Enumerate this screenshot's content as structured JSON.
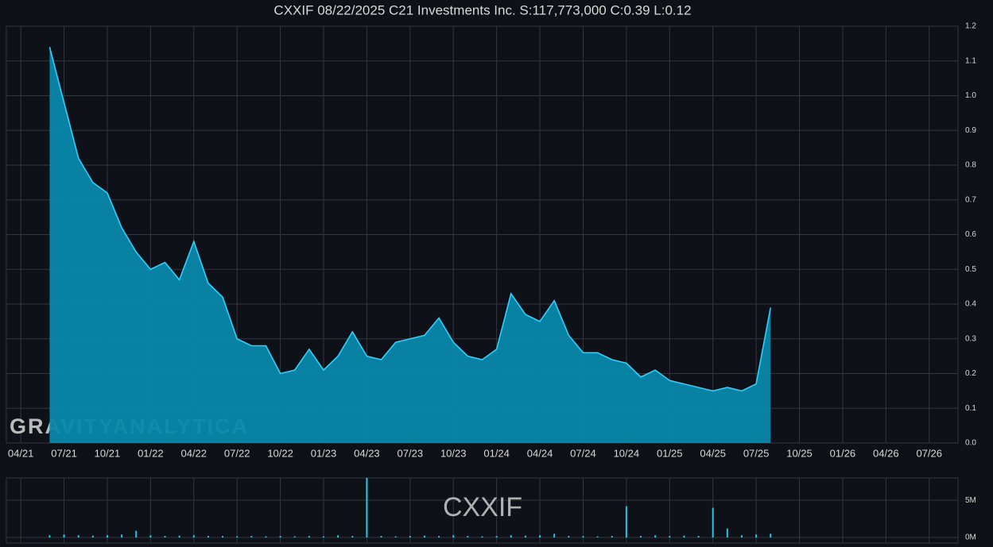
{
  "chart_data": [
    {
      "type": "area",
      "title": "CXXIF 08/22/2025 C21 Investments Inc. S:117,773,000 C:0.39 L:0.12",
      "watermark": "GRAVITYANALYTICA",
      "x": [
        "06/21",
        "07/21",
        "08/21",
        "09/21",
        "10/21",
        "11/21",
        "12/21",
        "01/22",
        "02/22",
        "03/22",
        "04/22",
        "05/22",
        "06/22",
        "07/22",
        "08/22",
        "09/22",
        "10/22",
        "11/22",
        "12/22",
        "01/23",
        "02/23",
        "03/23",
        "04/23",
        "05/23",
        "06/23",
        "07/23",
        "08/23",
        "09/23",
        "10/23",
        "11/23",
        "12/23",
        "01/24",
        "02/24",
        "03/24",
        "04/24",
        "05/24",
        "06/24",
        "07/24",
        "08/24",
        "09/24",
        "10/24",
        "11/24",
        "12/24",
        "01/25",
        "02/25",
        "03/25",
        "04/25",
        "05/25",
        "06/25",
        "07/25",
        "08/25"
      ],
      "values": [
        1.14,
        0.98,
        0.82,
        0.75,
        0.72,
        0.62,
        0.55,
        0.5,
        0.52,
        0.47,
        0.58,
        0.46,
        0.42,
        0.3,
        0.28,
        0.28,
        0.2,
        0.21,
        0.27,
        0.21,
        0.25,
        0.32,
        0.25,
        0.24,
        0.29,
        0.3,
        0.31,
        0.36,
        0.29,
        0.25,
        0.24,
        0.27,
        0.43,
        0.37,
        0.35,
        0.41,
        0.31,
        0.26,
        0.26,
        0.24,
        0.23,
        0.19,
        0.21,
        0.18,
        0.17,
        0.16,
        0.15,
        0.16,
        0.15,
        0.17,
        0.39
      ],
      "color": "#2fd0ff",
      "fill": "#0888aa",
      "xlim": [
        "03/21",
        "09/26"
      ],
      "xticks": [
        "04/21",
        "07/21",
        "10/21",
        "01/22",
        "04/22",
        "07/22",
        "10/22",
        "01/23",
        "04/23",
        "07/23",
        "10/23",
        "01/24",
        "04/24",
        "07/24",
        "10/24",
        "01/25",
        "04/25",
        "07/25",
        "10/25",
        "01/26",
        "04/26",
        "07/26"
      ],
      "ylim": [
        0,
        1.2
      ],
      "yticks": [
        {
          "value": 0,
          "label": "0.0"
        },
        0.1,
        0.2,
        0.3,
        0.4,
        0.5,
        0.6,
        0.7,
        0.8,
        0.9,
        {
          "value": 1,
          "label": "1.0"
        },
        1.1,
        1.2
      ],
      "grid": true
    },
    {
      "type": "bar",
      "watermark": "CXXIF",
      "x": [
        "06/21",
        "07/21",
        "08/21",
        "09/21",
        "10/21",
        "11/21",
        "12/21",
        "01/22",
        "02/22",
        "03/22",
        "04/22",
        "05/22",
        "06/22",
        "07/22",
        "08/22",
        "09/22",
        "10/22",
        "11/22",
        "12/22",
        "01/23",
        "02/23",
        "03/23",
        "04/23",
        "05/23",
        "06/23",
        "07/23",
        "08/23",
        "09/23",
        "10/23",
        "11/23",
        "12/23",
        "01/24",
        "02/24",
        "03/24",
        "04/24",
        "05/24",
        "06/24",
        "07/24",
        "08/24",
        "09/24",
        "10/24",
        "11/24",
        "12/24",
        "01/25",
        "02/25",
        "03/25",
        "04/25",
        "05/25",
        "06/25",
        "07/25",
        "08/25"
      ],
      "values": [
        300000,
        400000,
        300000,
        250000,
        300000,
        400000,
        900000,
        300000,
        200000,
        250000,
        300000,
        200000,
        200000,
        150000,
        200000,
        150000,
        200000,
        150000,
        200000,
        150000,
        300000,
        200000,
        8000000,
        200000,
        150000,
        200000,
        250000,
        200000,
        300000,
        200000,
        150000,
        200000,
        300000,
        250000,
        300000,
        500000,
        200000,
        200000,
        150000,
        200000,
        4200000,
        200000,
        300000,
        200000,
        250000,
        200000,
        4000000,
        1200000,
        300000,
        400000,
        500000
      ],
      "color": "#29c5e6",
      "xlim": [
        "03/21",
        "09/26"
      ],
      "ylim": [
        0,
        8000000
      ],
      "yticks": [
        {
          "value": 0,
          "label": "0M"
        },
        {
          "value": 5000000,
          "label": "5M"
        }
      ],
      "grid": true
    }
  ]
}
